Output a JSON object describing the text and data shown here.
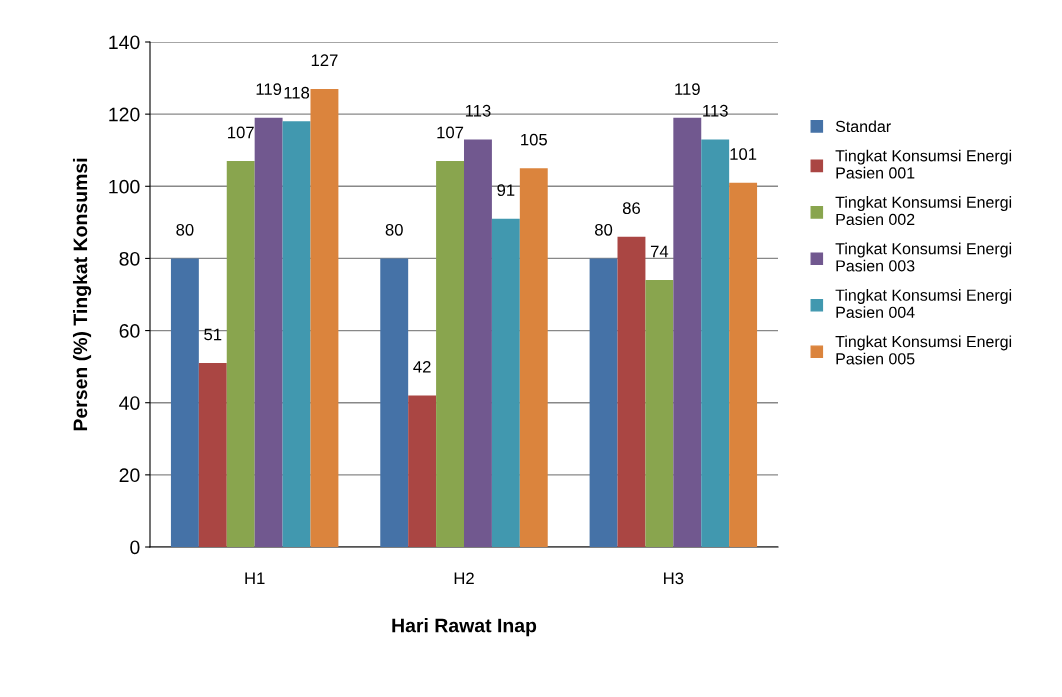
{
  "chart_data": {
    "type": "bar",
    "xlabel": "Hari Rawat Inap",
    "ylabel": "Persen (%) Tingkat Konsumsi",
    "categories": [
      "H1",
      "H2",
      "H3"
    ],
    "series": [
      {
        "name": "Standar",
        "color": "#4572a7",
        "values": [
          80,
          80,
          80
        ]
      },
      {
        "name": "Tingkat Konsumsi Energi Pasien 001",
        "color": "#aa4643",
        "values": [
          51,
          42,
          86
        ]
      },
      {
        "name": "Tingkat Konsumsi Energi Pasien 002",
        "color": "#89a54e",
        "values": [
          107,
          107,
          74
        ]
      },
      {
        "name": "Tingkat Konsumsi Energi Pasien 003",
        "color": "#71588f",
        "values": [
          119,
          113,
          119
        ]
      },
      {
        "name": "Tingkat Konsumsi Energi Pasien 004",
        "color": "#4198af",
        "values": [
          118,
          91,
          113
        ]
      },
      {
        "name": "Tingkat Konsumsi Energi Pasien 005",
        "color": "#db843d",
        "values": [
          127,
          105,
          101
        ]
      }
    ],
    "ylim": [
      0,
      140
    ],
    "yticks": [
      0,
      20,
      40,
      60,
      80,
      100,
      120,
      140
    ],
    "grid": "y",
    "legend": "right",
    "data_labels": true
  }
}
